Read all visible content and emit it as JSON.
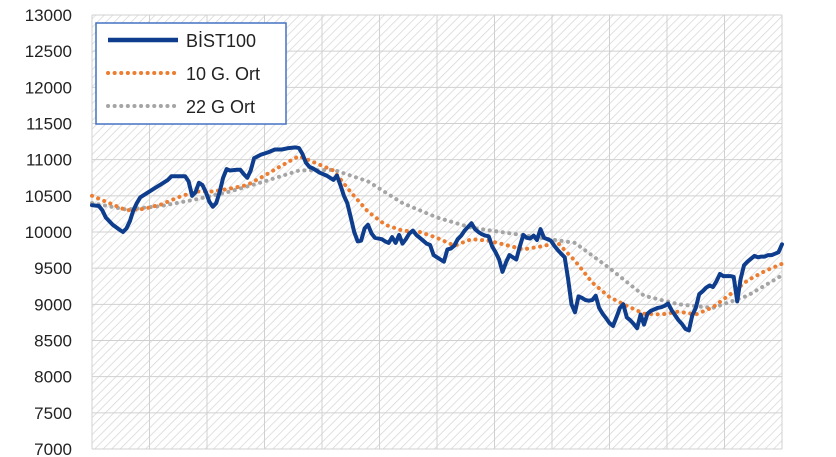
{
  "chart_data": {
    "type": "line",
    "title": "",
    "xlabel": "",
    "ylabel": "",
    "ylim": [
      7000,
      13000
    ],
    "yticks": [
      7000,
      7500,
      8000,
      8500,
      9000,
      9500,
      10000,
      10500,
      11000,
      11500,
      12000,
      12500,
      13000
    ],
    "ytick_labels": [
      "7000",
      "7500",
      "8000",
      "8500",
      "9000",
      "9500",
      "10000",
      "10500",
      "11000",
      "11500",
      "12000",
      "12500",
      "13000"
    ],
    "x_count": 150,
    "legend": {
      "placement": "top-left",
      "border_color": "#4472c4"
    },
    "grid": true,
    "background_pattern": "diagonal-hatch",
    "series": [
      {
        "name": "BİST100",
        "color": "#0d3d8c",
        "style": "solid",
        "points": [
          [
            0,
            10370
          ],
          [
            2,
            10360
          ],
          [
            3,
            10300
          ],
          [
            4,
            10200
          ],
          [
            6,
            10100
          ],
          [
            8,
            10030
          ],
          [
            9,
            10000
          ],
          [
            10,
            10050
          ],
          [
            11,
            10150
          ],
          [
            12,
            10300
          ],
          [
            13,
            10400
          ],
          [
            14,
            10480
          ],
          [
            16,
            10540
          ],
          [
            18,
            10600
          ],
          [
            20,
            10660
          ],
          [
            22,
            10720
          ],
          [
            23,
            10770
          ],
          [
            25,
            10770
          ],
          [
            27,
            10770
          ],
          [
            28,
            10700
          ],
          [
            29,
            10500
          ],
          [
            30,
            10550
          ],
          [
            31,
            10680
          ],
          [
            32,
            10650
          ],
          [
            33,
            10550
          ],
          [
            34,
            10420
          ],
          [
            35,
            10350
          ],
          [
            36,
            10400
          ],
          [
            37,
            10550
          ],
          [
            38,
            10750
          ],
          [
            39,
            10870
          ],
          [
            40,
            10850
          ],
          [
            42,
            10860
          ],
          [
            43,
            10860
          ],
          [
            44,
            10800
          ],
          [
            45,
            10750
          ],
          [
            46,
            10850
          ],
          [
            47,
            11020
          ],
          [
            49,
            11070
          ],
          [
            51,
            11100
          ],
          [
            53,
            11140
          ],
          [
            55,
            11140
          ],
          [
            57,
            11160
          ],
          [
            59,
            11170
          ],
          [
            60,
            11160
          ],
          [
            61,
            11080
          ],
          [
            62,
            10960
          ],
          [
            63,
            10900
          ],
          [
            64,
            10880
          ],
          [
            66,
            10820
          ],
          [
            68,
            10780
          ],
          [
            70,
            10720
          ],
          [
            71,
            10780
          ],
          [
            72,
            10650
          ],
          [
            73,
            10500
          ],
          [
            74,
            10400
          ],
          [
            75,
            10200
          ],
          [
            76,
            10000
          ],
          [
            77,
            9870
          ],
          [
            78,
            9880
          ],
          [
            79,
            10050
          ],
          [
            80,
            10100
          ],
          [
            81,
            9980
          ],
          [
            82,
            9920
          ],
          [
            84,
            9900
          ],
          [
            85,
            9870
          ],
          [
            86,
            9850
          ],
          [
            87,
            9930
          ],
          [
            88,
            9850
          ],
          [
            89,
            9960
          ],
          [
            90,
            9840
          ],
          [
            91,
            9900
          ],
          [
            92,
            9980
          ],
          [
            93,
            10020
          ],
          [
            94,
            9960
          ],
          [
            95,
            9920
          ],
          [
            96,
            9880
          ],
          [
            97,
            9840
          ],
          [
            98,
            9820
          ],
          [
            99,
            9680
          ],
          [
            100,
            9650
          ],
          [
            101,
            9620
          ],
          [
            102,
            9590
          ],
          [
            103,
            9760
          ],
          [
            104,
            9770
          ],
          [
            105,
            9810
          ],
          [
            106,
            9900
          ],
          [
            107,
            9950
          ],
          [
            108,
            10020
          ],
          [
            109,
            10070
          ],
          [
            110,
            10120
          ],
          [
            111,
            10040
          ],
          [
            112,
            10000
          ],
          [
            113,
            9970
          ],
          [
            114,
            9950
          ],
          [
            115,
            9940
          ],
          [
            116,
            9800
          ],
          [
            117,
            9720
          ],
          [
            118,
            9620
          ],
          [
            119,
            9450
          ],
          [
            120,
            9580
          ],
          [
            121,
            9680
          ],
          [
            122,
            9650
          ],
          [
            123,
            9620
          ],
          [
            124,
            9800
          ],
          [
            125,
            9960
          ],
          [
            126,
            9920
          ],
          [
            127,
            9910
          ],
          [
            128,
            9950
          ],
          [
            129,
            9890
          ],
          [
            130,
            10040
          ],
          [
            131,
            9920
          ],
          [
            132,
            9900
          ],
          [
            133,
            9880
          ],
          [
            134,
            9810
          ],
          [
            135,
            9750
          ],
          [
            136,
            9700
          ],
          [
            137,
            9650
          ],
          [
            138,
            9350
          ],
          [
            139,
            9000
          ],
          [
            140,
            8890
          ],
          [
            141,
            9110
          ],
          [
            142,
            9090
          ],
          [
            143,
            9060
          ],
          [
            144,
            9050
          ],
          [
            145,
            9060
          ],
          [
            146,
            9120
          ],
          [
            147,
            8950
          ],
          [
            148,
            8870
          ],
          [
            149,
            8810
          ],
          [
            150,
            8740
          ],
          [
            151,
            8700
          ],
          [
            152,
            8820
          ],
          [
            153,
            8950
          ],
          [
            154,
            9000
          ],
          [
            155,
            8820
          ],
          [
            156,
            8780
          ],
          [
            157,
            8730
          ],
          [
            158,
            8670
          ],
          [
            159,
            8860
          ],
          [
            160,
            8720
          ],
          [
            161,
            8870
          ],
          [
            162,
            8910
          ],
          [
            163,
            8930
          ],
          [
            164,
            8950
          ],
          [
            165,
            8960
          ],
          [
            166,
            8980
          ],
          [
            167,
            9010
          ],
          [
            168,
            8920
          ],
          [
            169,
            8850
          ],
          [
            170,
            8780
          ],
          [
            171,
            8730
          ],
          [
            172,
            8660
          ],
          [
            173,
            8640
          ],
          [
            174,
            8850
          ],
          [
            175,
            8950
          ],
          [
            176,
            9140
          ],
          [
            177,
            9180
          ],
          [
            178,
            9230
          ],
          [
            179,
            9260
          ],
          [
            180,
            9240
          ],
          [
            181,
            9320
          ],
          [
            182,
            9420
          ],
          [
            183,
            9390
          ],
          [
            184,
            9390
          ],
          [
            185,
            9390
          ],
          [
            186,
            9380
          ],
          [
            187,
            9040
          ],
          [
            188,
            9350
          ],
          [
            189,
            9540
          ],
          [
            190,
            9590
          ],
          [
            191,
            9630
          ],
          [
            192,
            9670
          ],
          [
            193,
            9650
          ],
          [
            194,
            9660
          ],
          [
            195,
            9660
          ],
          [
            196,
            9680
          ],
          [
            197,
            9680
          ],
          [
            198,
            9700
          ],
          [
            199,
            9720
          ],
          [
            200,
            9830
          ]
        ]
      },
      {
        "name": "10 G. Ort",
        "color": "#ed7d31",
        "style": "dotted",
        "points": [
          [
            0,
            10500
          ],
          [
            5,
            10400
          ],
          [
            10,
            10300
          ],
          [
            15,
            10320
          ],
          [
            20,
            10380
          ],
          [
            25,
            10480
          ],
          [
            30,
            10560
          ],
          [
            35,
            10560
          ],
          [
            40,
            10600
          ],
          [
            45,
            10650
          ],
          [
            50,
            10780
          ],
          [
            55,
            10920
          ],
          [
            60,
            11050
          ],
          [
            65,
            10950
          ],
          [
            70,
            10850
          ],
          [
            75,
            10550
          ],
          [
            80,
            10280
          ],
          [
            85,
            10100
          ],
          [
            90,
            10020
          ],
          [
            95,
            10000
          ],
          [
            100,
            9920
          ],
          [
            105,
            9810
          ],
          [
            110,
            9900
          ],
          [
            115,
            9880
          ],
          [
            120,
            9820
          ],
          [
            125,
            9760
          ],
          [
            130,
            9800
          ],
          [
            135,
            9850
          ],
          [
            140,
            9600
          ],
          [
            145,
            9300
          ],
          [
            150,
            9100
          ],
          [
            155,
            8980
          ],
          [
            160,
            8870
          ],
          [
            165,
            8860
          ],
          [
            170,
            8900
          ],
          [
            175,
            8860
          ],
          [
            180,
            8960
          ],
          [
            185,
            9140
          ],
          [
            190,
            9330
          ],
          [
            195,
            9460
          ],
          [
            200,
            9560
          ]
        ]
      },
      {
        "name": "22 G Ort",
        "color": "#a5a5a5",
        "style": "dotted",
        "points": [
          [
            0,
            10400
          ],
          [
            10,
            10310
          ],
          [
            20,
            10360
          ],
          [
            30,
            10450
          ],
          [
            40,
            10560
          ],
          [
            50,
            10700
          ],
          [
            60,
            10850
          ],
          [
            70,
            10860
          ],
          [
            80,
            10700
          ],
          [
            90,
            10400
          ],
          [
            100,
            10200
          ],
          [
            110,
            10060
          ],
          [
            120,
            9990
          ],
          [
            130,
            9920
          ],
          [
            140,
            9850
          ],
          [
            150,
            9500
          ],
          [
            160,
            9120
          ],
          [
            170,
            9000
          ],
          [
            180,
            8950
          ],
          [
            190,
            9120
          ],
          [
            200,
            9400
          ]
        ]
      }
    ]
  }
}
